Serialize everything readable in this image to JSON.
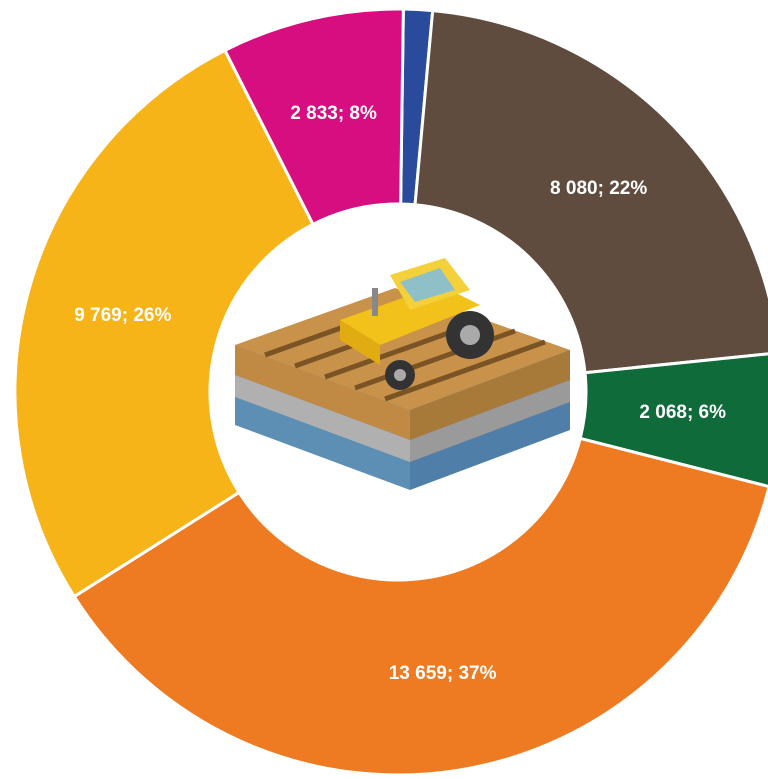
{
  "chart_data": {
    "type": "donut",
    "series": [
      {
        "values": [
          450,
          8080,
          2068,
          13659,
          9769,
          2833
        ],
        "value_labels": [
          null,
          "8 080; 22%",
          "2 068; 6%",
          "13 659; 37%",
          "9 769; 26%",
          "2 833; 8%"
        ],
        "colors": [
          "#2a4b9b",
          "#604c3f",
          "#0f6b3a",
          "#ee7b22",
          "#f7b418",
          "#d60e7f"
        ]
      }
    ]
  }
}
